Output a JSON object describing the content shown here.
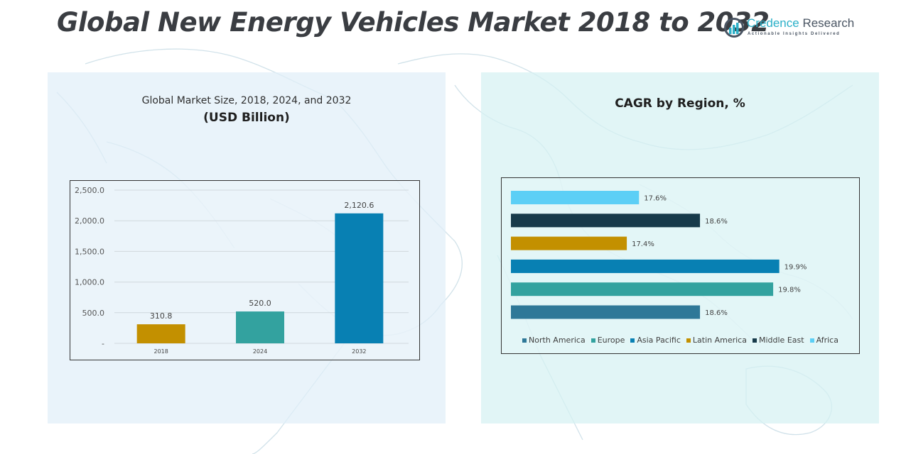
{
  "header": {
    "title": "Global New Energy Vehicles Market 2018 to 2032",
    "logo": {
      "name_part1": "Credence",
      "name_part2": "Research",
      "tagline": "Actionable Insights Delivered",
      "icon": "bar-chart-circle-icon"
    }
  },
  "colors": {
    "north_america": "#2e7898",
    "europe": "#33a29f",
    "asia_pacific": "#0880b3",
    "latin_america": "#c39000",
    "middle_east": "#173a4a",
    "africa": "#5ccff6"
  },
  "chart_data": [
    {
      "type": "bar",
      "title": "Global Market Size, 2018, 2024, and 2032",
      "subtitle": "(USD Billion)",
      "categories": [
        "2018",
        "2024",
        "2032"
      ],
      "values": [
        310.8,
        520.0,
        2120.6
      ],
      "value_labels": [
        "310.8",
        "520.0",
        "2,120.6"
      ],
      "bar_colors": [
        "#c39000",
        "#33a29f",
        "#0880b3"
      ],
      "xlabel": "",
      "ylabel": "",
      "ylim": [
        0,
        2500
      ],
      "yticks": [
        0,
        500,
        1000,
        1500,
        2000,
        2500
      ],
      "ytick_labels": [
        "-",
        "500.0",
        "1,000.0",
        "1,500.0",
        "2,000.0",
        "2,500.0"
      ],
      "grid": true,
      "legend": "none"
    },
    {
      "type": "bar",
      "orientation": "horizontal",
      "title": "CAGR by Region, %",
      "categories": [
        "North America",
        "Europe",
        "Asia Pacific",
        "Latin America",
        "Middle East",
        "Africa"
      ],
      "values": [
        18.6,
        19.8,
        19.9,
        17.4,
        18.6,
        17.6
      ],
      "value_labels": [
        "18.6%",
        "19.8%",
        "19.9%",
        "17.4%",
        "18.6%",
        "17.6%"
      ],
      "bar_colors": [
        "#2e7898",
        "#33a29f",
        "#0880b3",
        "#c39000",
        "#173a4a",
        "#5ccff6"
      ],
      "xlim": [
        15.5,
        20.3
      ],
      "grid": false,
      "legend": "bottom",
      "legend_entries": [
        "North America",
        "Europe",
        "Asia Pacific",
        "Latin America",
        "Middle East",
        "Africa"
      ]
    }
  ]
}
